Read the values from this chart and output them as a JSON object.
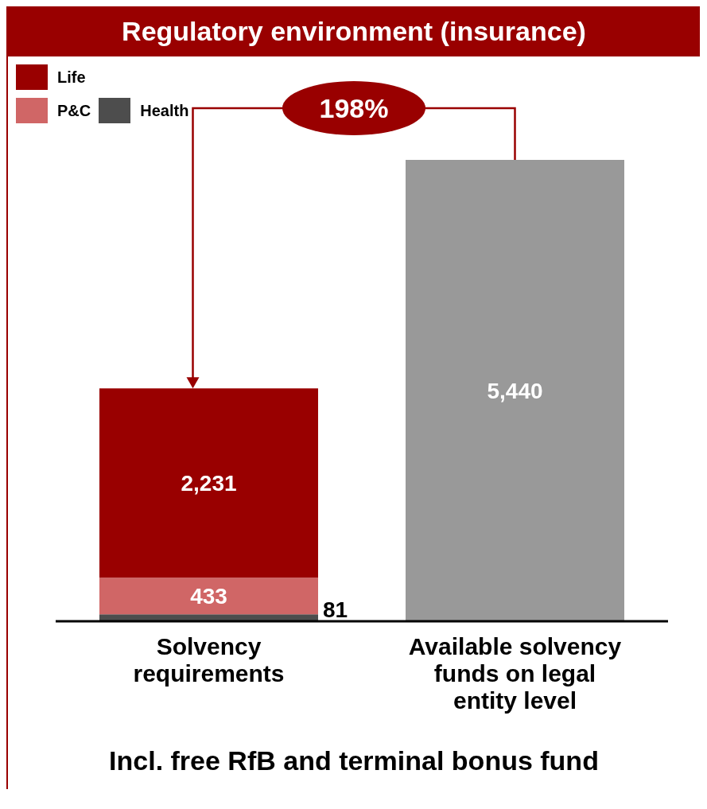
{
  "chart_data": {
    "type": "bar",
    "title": "Regulatory environment (insurance)",
    "categories": [
      "Solvency requirements",
      "Available solvency funds on legal entity level"
    ],
    "stacked": true,
    "legend": "top left",
    "series": [
      {
        "name": "Health",
        "color": "#4d4d4d",
        "values": [
          81,
          null
        ],
        "value_labels": [
          "81",
          null
        ]
      },
      {
        "name": "P&C",
        "color": "#d06666",
        "values": [
          433,
          null
        ],
        "value_labels": [
          "433",
          null
        ]
      },
      {
        "name": "Life",
        "color": "#990000",
        "values": [
          2231,
          null
        ],
        "value_labels": [
          "2,231",
          null
        ]
      },
      {
        "color": "#999999",
        "values": [
          null,
          5440
        ],
        "value_labels": [
          null,
          "5,440"
        ]
      }
    ],
    "annotations": [
      "198%",
      "Incl. free RfB and terminal bonus fund"
    ]
  }
}
